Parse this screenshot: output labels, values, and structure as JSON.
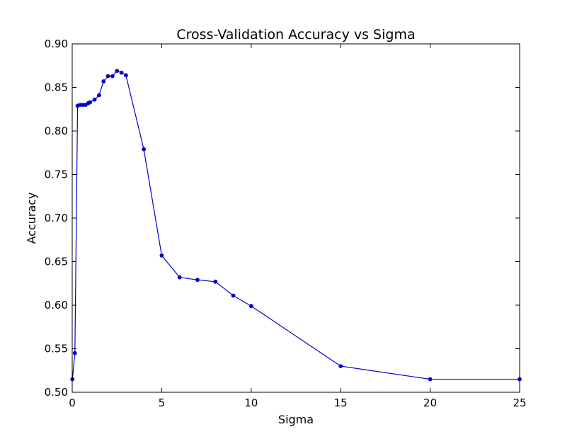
{
  "chart_data": {
    "type": "line",
    "title": "Cross-Validation Accuracy vs Sigma",
    "xlabel": "Sigma",
    "ylabel": "Accuracy",
    "xlim": [
      0,
      25
    ],
    "ylim": [
      0.5,
      0.9
    ],
    "xticks": [
      0,
      5,
      10,
      15,
      20,
      25
    ],
    "xtick_labels": [
      "0",
      "5",
      "10",
      "15",
      "20",
      "25"
    ],
    "yticks": [
      0.5,
      0.55,
      0.6,
      0.65,
      0.7,
      0.75,
      0.8,
      0.85,
      0.9
    ],
    "ytick_labels": [
      "0.50",
      "0.55",
      "0.60",
      "0.65",
      "0.70",
      "0.75",
      "0.80",
      "0.85",
      "0.90"
    ],
    "grid": false,
    "series": [
      {
        "color": "#0000cc",
        "marker": "dot",
        "x": [
          0.01,
          0.15,
          0.3,
          0.45,
          0.6,
          0.75,
          0.9,
          1.0,
          1.25,
          1.5,
          1.75,
          2.0,
          2.25,
          2.5,
          2.75,
          3.0,
          4.0,
          5.0,
          6.0,
          7.0,
          8.0,
          9.0,
          10.0,
          15.0,
          20.0,
          25.0
        ],
        "y": [
          0.515,
          0.545,
          0.829,
          0.83,
          0.83,
          0.83,
          0.832,
          0.833,
          0.836,
          0.841,
          0.857,
          0.863,
          0.863,
          0.869,
          0.867,
          0.864,
          0.779,
          0.657,
          0.632,
          0.629,
          0.627,
          0.611,
          0.599,
          0.53,
          0.515,
          0.515
        ]
      }
    ]
  }
}
